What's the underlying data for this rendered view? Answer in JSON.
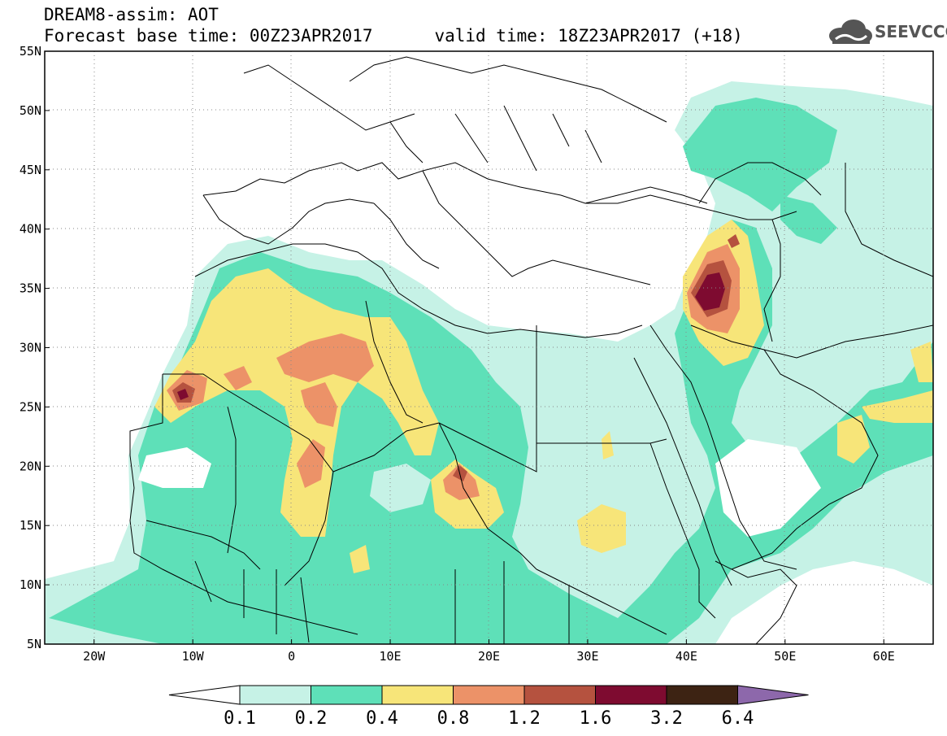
{
  "header": {
    "line1": "DREAM8-assim: AOT",
    "line2_base": "Forecast base time: 00Z23APR2017",
    "line2_valid": "valid time: 18Z23APR2017 (+18)"
  },
  "logo": {
    "text": "SEEVCCC",
    "icon": "cloud-icon"
  },
  "map": {
    "lon_range": [
      -25,
      65
    ],
    "lat_range": [
      5,
      55
    ],
    "lat_ticks": [
      "5N",
      "10N",
      "15N",
      "20N",
      "25N",
      "30N",
      "35N",
      "40N",
      "45N",
      "50N",
      "55N"
    ],
    "lon_ticks": [
      "20W",
      "10W",
      "0",
      "10E",
      "20E",
      "30E",
      "40E",
      "50E",
      "60E"
    ],
    "lon_tick_values": [
      -20,
      -10,
      0,
      10,
      20,
      30,
      40,
      50,
      60
    ],
    "lat_tick_values": [
      5,
      10,
      15,
      20,
      25,
      30,
      35,
      40,
      45,
      50,
      55
    ],
    "grid": "dotted"
  },
  "colorbar": {
    "labels": [
      "0.1",
      "0.2",
      "0.4",
      "0.8",
      "1.2",
      "1.6",
      "3.2",
      "6.4"
    ],
    "colors": [
      "#c6f2e6",
      "#5ee0b8",
      "#f7e579",
      "#ec9268",
      "#b5523f",
      "#7e0b30",
      "#3d2313"
    ],
    "over_color": "#8d68ab",
    "under_color": "#ffffff"
  }
}
